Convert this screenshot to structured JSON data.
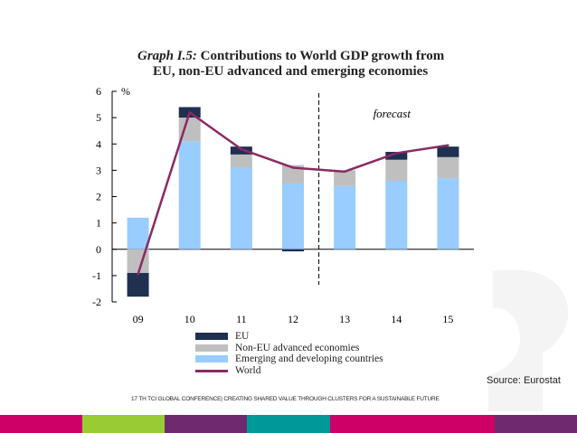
{
  "slide": {
    "title_prefix": "Graph I.5:",
    "title_line1": "Contributions to World GDP growth from",
    "title_line2": "EU, non-EU advanced and emerging economies",
    "source": "Source: Eurostat",
    "footer": "17 TH TCI GLOBAL CONFERENCE| CREATING SHARED VALUE THROUGH CLUSTERS FOR A SUSTAINABLE FUTURE"
  },
  "colors": {
    "eu": "#1f3050",
    "non_eu": "#bfbfbf",
    "emerging": "#99ccff",
    "world": "#8b2a63",
    "stripes": [
      "#cc0066",
      "#99cc33",
      "#6f2a6f",
      "#009999",
      "#cc0066",
      "#cc0066",
      "#6f2a6f"
    ]
  },
  "chart_data": {
    "type": "bar",
    "stacked": true,
    "unit_label": "%",
    "forecast_label": "forecast",
    "forecast_start_after": "12",
    "categories": [
      "09",
      "10",
      "11",
      "12",
      "13",
      "14",
      "15"
    ],
    "ylim": [
      -2,
      6
    ],
    "yticks": [
      6,
      5,
      4,
      3,
      2,
      1,
      0,
      -1,
      -2
    ],
    "series": [
      {
        "name": "EU",
        "type": "bar",
        "values": [
          -0.9,
          0.4,
          0.3,
          0.0,
          0.0,
          0.3,
          0.4
        ]
      },
      {
        "name": "Non-EU advanced economies",
        "type": "bar",
        "values": [
          -0.9,
          0.9,
          0.5,
          0.7,
          0.6,
          0.8,
          0.8
        ]
      },
      {
        "name": "Emerging and developing countries",
        "type": "bar",
        "values": [
          1.2,
          4.1,
          3.1,
          2.5,
          2.4,
          2.6,
          2.7
        ]
      },
      {
        "name": "World",
        "type": "line",
        "values": [
          -0.95,
          5.2,
          3.8,
          3.1,
          2.95,
          3.65,
          3.95
        ]
      }
    ],
    "neg_adjust": {
      "12": -0.08
    },
    "legend": [
      "EU",
      "Non-EU advanced economies",
      "Emerging and developing countries",
      "World"
    ]
  }
}
